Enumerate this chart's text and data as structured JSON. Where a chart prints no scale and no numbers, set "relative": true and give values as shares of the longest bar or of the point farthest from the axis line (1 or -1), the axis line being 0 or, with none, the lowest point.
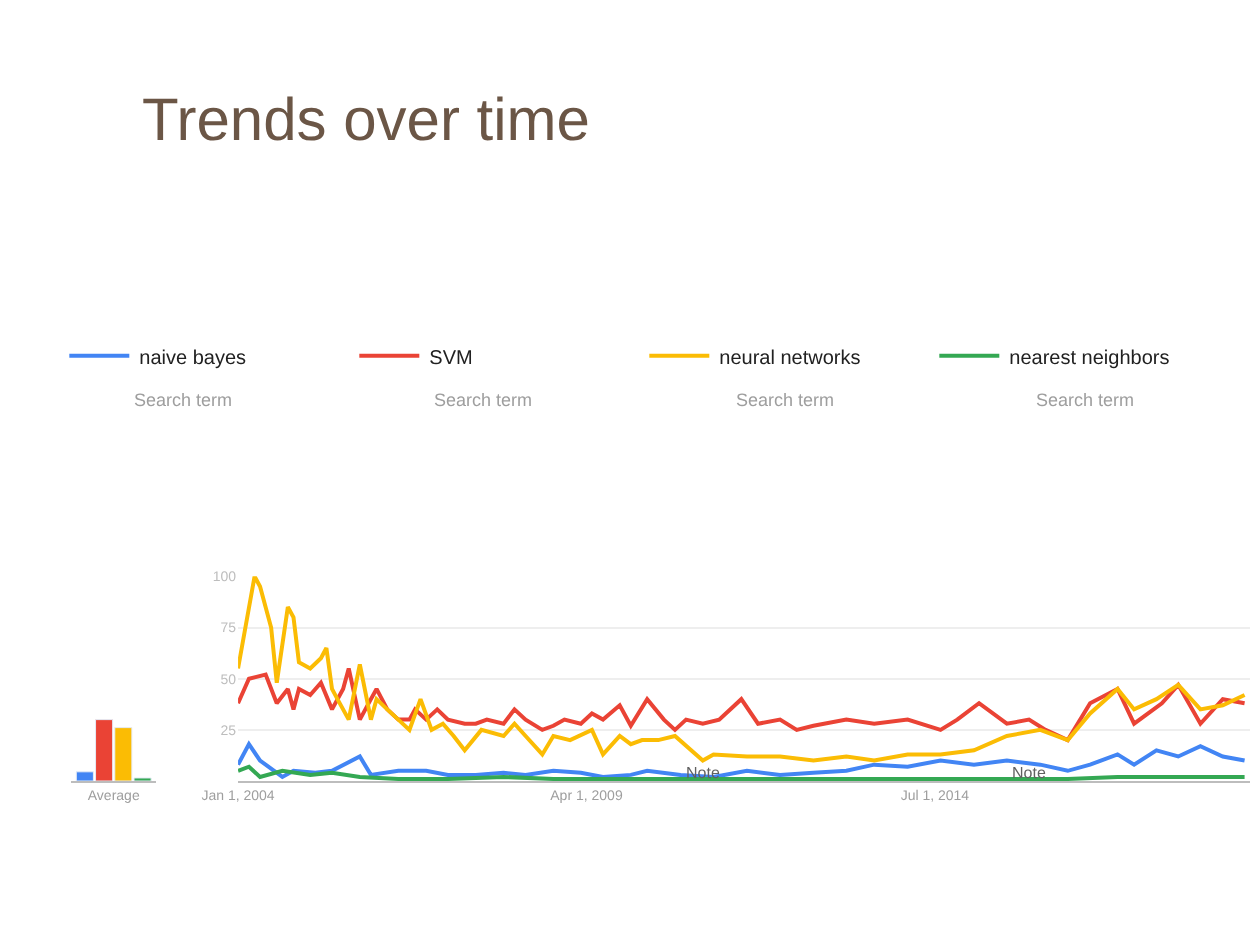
{
  "chart_data": [
    {
      "type": "bar",
      "relative": true,
      "categories": [
        "Average"
      ],
      "series": [
        {
          "color": "#4285f4",
          "values": [
            0.15
          ]
        },
        {
          "color": "#ea4335",
          "values": [
            1
          ]
        },
        {
          "color": "#fbbc04",
          "values": [
            0.87
          ]
        },
        {
          "color": "#34a853",
          "values": [
            0.05
          ]
        }
      ],
      "grid": false,
      "legend": false
    },
    {
      "type": "line",
      "title": "Trends over time",
      "annotations": [
        "Search term",
        "Search term",
        "Search term",
        "Search term",
        {
          "text": "Note",
          "x": "2011-01",
          "y": 4
        },
        {
          "text": "Note",
          "x": "2015-12",
          "y": 4
        }
      ],
      "xlim": [
        "2004-01-01",
        "2019-04-01"
      ],
      "xticks": [
        {
          "value": "2004-01-01",
          "label": "Jan 1, 2004"
        },
        {
          "value": "2009-04-01",
          "label": "Apr 1, 2009"
        },
        {
          "value": "2014-07-01",
          "label": "Jul 1, 2014"
        }
      ],
      "ylim": [
        0,
        100
      ],
      "yticks": [
        25,
        50,
        75,
        100
      ],
      "grid": "y",
      "legend": "top",
      "marker": "none",
      "line_style": "solid",
      "series": [
        {
          "name": "naive bayes",
          "color": "#4285f4",
          "x": [
            "2004-01",
            "2004-03",
            "2004-05",
            "2004-09",
            "2004-11",
            "2005-03",
            "2005-06",
            "2005-11",
            "2006-01",
            "2006-06",
            "2006-11",
            "2007-03",
            "2007-08",
            "2008-01",
            "2008-05",
            "2008-10",
            "2009-03",
            "2009-07",
            "2009-12",
            "2010-03",
            "2010-09",
            "2011-03",
            "2011-09",
            "2012-03",
            "2012-09",
            "2013-03",
            "2013-08",
            "2014-02",
            "2014-08",
            "2015-02",
            "2015-08",
            "2016-02",
            "2016-07",
            "2016-11",
            "2017-04",
            "2017-07",
            "2017-11",
            "2018-03",
            "2018-07",
            "2018-11",
            "2019-03"
          ],
          "values": [
            8,
            18,
            10,
            2,
            5,
            4,
            5,
            12,
            3,
            5,
            5,
            3,
            3,
            4,
            3,
            5,
            4,
            2,
            3,
            5,
            3,
            2,
            5,
            3,
            4,
            5,
            8,
            7,
            10,
            8,
            10,
            8,
            5,
            8,
            13,
            8,
            15,
            12,
            17,
            12,
            10
          ]
        },
        {
          "name": "SVM",
          "color": "#ea4335",
          "x": [
            "2004-01",
            "2004-03",
            "2004-06",
            "2004-08",
            "2004-10",
            "2004-11",
            "2004-12",
            "2005-02",
            "2005-04",
            "2005-06",
            "2005-08",
            "2005-09",
            "2005-11",
            "2006-01",
            "2006-02",
            "2006-04",
            "2006-06",
            "2006-08",
            "2006-09",
            "2006-11",
            "2007-01",
            "2007-03",
            "2007-06",
            "2007-08",
            "2007-10",
            "2008-01",
            "2008-03",
            "2008-05",
            "2008-08",
            "2008-10",
            "2008-12",
            "2009-03",
            "2009-05",
            "2009-07",
            "2009-10",
            "2009-12",
            "2010-03",
            "2010-06",
            "2010-08",
            "2010-10",
            "2011-01",
            "2011-04",
            "2011-08",
            "2011-11",
            "2012-03",
            "2012-06",
            "2012-09",
            "2013-03",
            "2013-08",
            "2014-02",
            "2014-08",
            "2014-11",
            "2015-03",
            "2015-08",
            "2015-12",
            "2016-03",
            "2016-07",
            "2016-11",
            "2017-04",
            "2017-07",
            "2017-12",
            "2018-03",
            "2018-07",
            "2018-11",
            "2019-03"
          ],
          "values": [
            38,
            50,
            52,
            38,
            45,
            35,
            45,
            42,
            48,
            35,
            45,
            55,
            30,
            40,
            45,
            35,
            30,
            30,
            35,
            30,
            35,
            30,
            28,
            28,
            30,
            28,
            35,
            30,
            25,
            27,
            30,
            28,
            33,
            30,
            37,
            27,
            40,
            30,
            25,
            30,
            28,
            30,
            40,
            28,
            30,
            25,
            27,
            30,
            28,
            30,
            25,
            30,
            38,
            28,
            30,
            25,
            20,
            38,
            45,
            28,
            38,
            47,
            28,
            40,
            38
          ]
        },
        {
          "name": "neural networks",
          "color": "#fbbc04",
          "x": [
            "2004-01",
            "2004-04",
            "2004-05",
            "2004-07",
            "2004-08",
            "2004-10",
            "2004-11",
            "2004-12",
            "2005-02",
            "2005-04",
            "2005-05",
            "2005-06",
            "2005-07",
            "2005-09",
            "2005-11",
            "2006-01",
            "2006-02",
            "2006-04",
            "2006-06",
            "2006-08",
            "2006-10",
            "2006-12",
            "2007-02",
            "2007-04",
            "2007-06",
            "2007-09",
            "2008-01",
            "2008-03",
            "2008-05",
            "2008-08",
            "2008-10",
            "2009-01",
            "2009-05",
            "2009-07",
            "2009-10",
            "2009-12",
            "2010-02",
            "2010-05",
            "2010-08",
            "2011-01",
            "2011-03",
            "2011-09",
            "2012-03",
            "2012-09",
            "2013-03",
            "2013-08",
            "2014-02",
            "2014-08",
            "2015-02",
            "2015-08",
            "2016-02",
            "2016-07",
            "2016-11",
            "2017-04",
            "2017-07",
            "2017-11",
            "2018-03",
            "2018-07",
            "2018-11",
            "2019-03"
          ],
          "values": [
            55,
            100,
            95,
            75,
            48,
            85,
            80,
            58,
            55,
            60,
            65,
            45,
            40,
            30,
            57,
            30,
            40,
            35,
            30,
            25,
            40,
            25,
            28,
            22,
            15,
            25,
            22,
            28,
            22,
            13,
            22,
            20,
            25,
            13,
            22,
            18,
            20,
            20,
            22,
            10,
            13,
            12,
            12,
            10,
            12,
            10,
            13,
            13,
            15,
            22,
            25,
            20,
            33,
            45,
            35,
            40,
            47,
            35,
            37,
            42
          ]
        },
        {
          "name": "nearest neighbors",
          "color": "#34a853",
          "x": [
            "2004-01",
            "2004-03",
            "2004-05",
            "2004-09",
            "2005-02",
            "2005-06",
            "2005-11",
            "2006-06",
            "2007-03",
            "2008-01",
            "2008-10",
            "2009-07",
            "2010-03",
            "2010-09",
            "2012-09",
            "2014-08",
            "2016-07",
            "2017-04",
            "2018-01",
            "2019-03"
          ],
          "values": [
            5,
            7,
            2,
            5,
            3,
            4,
            2,
            1,
            1,
            2,
            1,
            1,
            1,
            1,
            1,
            1,
            1,
            2,
            2,
            2
          ]
        }
      ]
    }
  ]
}
